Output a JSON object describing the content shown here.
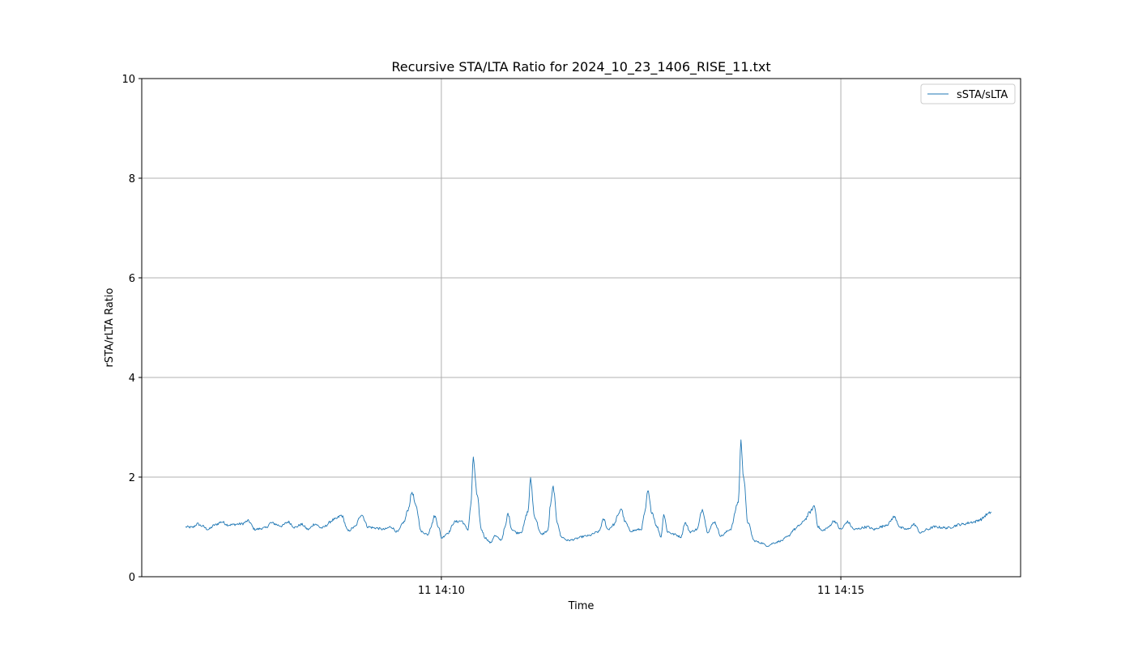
{
  "chart_data": {
    "type": "line",
    "title": "Recursive STA/LTA Ratio for 2024_10_23_1406_RISE_11.txt",
    "xlabel": "Time",
    "ylabel": "rSTA/rLTA Ratio",
    "xlim": [
      "14:06:15",
      "14:17:15"
    ],
    "ylim": [
      0,
      10
    ],
    "yticks": [
      0,
      2,
      4,
      6,
      8,
      10
    ],
    "xticks": [
      {
        "time": "14:10:00",
        "label": "11 14:10"
      },
      {
        "time": "14:15:00",
        "label": "11 14:15"
      }
    ],
    "grid": true,
    "legend": {
      "position": "top-right"
    },
    "series": [
      {
        "name": "sSTA/sLTA",
        "color": "#1f77b4",
        "keypoints": [
          [
            "14:06:48",
            1.0
          ],
          [
            "14:06:53",
            0.99
          ],
          [
            "14:06:57",
            1.06
          ],
          [
            "14:07:00",
            1.02
          ],
          [
            "14:07:05",
            0.95
          ],
          [
            "14:07:10",
            1.04
          ],
          [
            "14:07:15",
            1.1
          ],
          [
            "14:07:20",
            1.04
          ],
          [
            "14:07:30",
            1.06
          ],
          [
            "14:07:35",
            1.12
          ],
          [
            "14:07:40",
            0.95
          ],
          [
            "14:07:48",
            0.98
          ],
          [
            "14:07:52",
            1.08
          ],
          [
            "14:08:00",
            1.02
          ],
          [
            "14:08:05",
            1.1
          ],
          [
            "14:08:10",
            0.99
          ],
          [
            "14:08:15",
            1.05
          ],
          [
            "14:08:20",
            0.95
          ],
          [
            "14:08:25",
            1.06
          ],
          [
            "14:08:30",
            0.98
          ],
          [
            "14:08:40",
            1.15
          ],
          [
            "14:08:45",
            1.23
          ],
          [
            "14:08:50",
            0.92
          ],
          [
            "14:08:55",
            1.0
          ],
          [
            "14:09:00",
            1.25
          ],
          [
            "14:09:05",
            1.0
          ],
          [
            "14:09:10",
            0.98
          ],
          [
            "14:09:17",
            0.95
          ],
          [
            "14:09:22",
            1.0
          ],
          [
            "14:09:27",
            0.9
          ],
          [
            "14:09:32",
            1.1
          ],
          [
            "14:09:35",
            1.35
          ],
          [
            "14:09:38",
            1.7
          ],
          [
            "14:09:41",
            1.4
          ],
          [
            "14:09:45",
            0.9
          ],
          [
            "14:09:50",
            0.85
          ],
          [
            "14:09:52",
            1.0
          ],
          [
            "14:09:55",
            1.22
          ],
          [
            "14:09:58",
            1.0
          ],
          [
            "14:10:00",
            0.78
          ],
          [
            "14:10:05",
            0.88
          ],
          [
            "14:10:10",
            1.1
          ],
          [
            "14:10:15",
            1.12
          ],
          [
            "14:10:20",
            0.95
          ],
          [
            "14:10:22",
            1.4
          ],
          [
            "14:10:24",
            2.35
          ],
          [
            "14:10:27",
            1.6
          ],
          [
            "14:10:30",
            0.95
          ],
          [
            "14:10:33",
            0.78
          ],
          [
            "14:10:37",
            0.68
          ],
          [
            "14:10:40",
            0.82
          ],
          [
            "14:10:45",
            0.74
          ],
          [
            "14:10:48",
            1.0
          ],
          [
            "14:10:50",
            1.27
          ],
          [
            "14:10:53",
            0.95
          ],
          [
            "14:10:57",
            0.88
          ],
          [
            "14:11:00",
            0.9
          ],
          [
            "14:11:05",
            1.3
          ],
          [
            "14:11:07",
            1.95
          ],
          [
            "14:11:10",
            1.2
          ],
          [
            "14:11:15",
            0.85
          ],
          [
            "14:11:20",
            0.92
          ],
          [
            "14:11:22",
            1.45
          ],
          [
            "14:11:24",
            1.8
          ],
          [
            "14:11:27",
            1.1
          ],
          [
            "14:11:30",
            0.8
          ],
          [
            "14:11:35",
            0.73
          ],
          [
            "14:11:50",
            0.82
          ],
          [
            "14:11:58",
            0.9
          ],
          [
            "14:12:02",
            1.15
          ],
          [
            "14:12:05",
            0.95
          ],
          [
            "14:12:10",
            1.05
          ],
          [
            "14:12:12",
            1.2
          ],
          [
            "14:12:15",
            1.37
          ],
          [
            "14:12:18",
            1.1
          ],
          [
            "14:12:22",
            0.92
          ],
          [
            "14:12:30",
            0.95
          ],
          [
            "14:12:33",
            1.3
          ],
          [
            "14:12:35",
            1.72
          ],
          [
            "14:12:38",
            1.3
          ],
          [
            "14:12:42",
            1.0
          ],
          [
            "14:12:45",
            0.8
          ],
          [
            "14:12:47",
            1.25
          ],
          [
            "14:12:50",
            0.9
          ],
          [
            "14:12:55",
            0.85
          ],
          [
            "14:13:00",
            0.8
          ],
          [
            "14:13:03",
            1.08
          ],
          [
            "14:13:07",
            0.9
          ],
          [
            "14:13:12",
            0.95
          ],
          [
            "14:13:16",
            1.35
          ],
          [
            "14:13:20",
            0.9
          ],
          [
            "14:13:25",
            1.1
          ],
          [
            "14:13:30",
            0.82
          ],
          [
            "14:13:37",
            0.95
          ],
          [
            "14:13:43",
            1.5
          ],
          [
            "14:13:45",
            2.7
          ],
          [
            "14:13:47",
            2.0
          ],
          [
            "14:13:50",
            1.1
          ],
          [
            "14:13:55",
            0.72
          ],
          [
            "14:14:00",
            0.68
          ],
          [
            "14:14:05",
            0.62
          ],
          [
            "14:14:10",
            0.68
          ],
          [
            "14:14:15",
            0.72
          ],
          [
            "14:14:20",
            0.8
          ],
          [
            "14:14:25",
            0.95
          ],
          [
            "14:14:30",
            1.05
          ],
          [
            "14:14:33",
            1.15
          ],
          [
            "14:14:37",
            1.3
          ],
          [
            "14:14:40",
            1.42
          ],
          [
            "14:14:43",
            1.0
          ],
          [
            "14:14:46",
            0.92
          ],
          [
            "14:14:50",
            0.98
          ],
          [
            "14:14:55",
            1.12
          ],
          [
            "14:15:00",
            0.95
          ],
          [
            "14:15:05",
            1.1
          ],
          [
            "14:15:10",
            0.95
          ],
          [
            "14:15:20",
            1.0
          ],
          [
            "14:15:25",
            0.95
          ],
          [
            "14:15:30",
            1.0
          ],
          [
            "14:15:35",
            1.05
          ],
          [
            "14:15:40",
            1.2
          ],
          [
            "14:15:45",
            0.98
          ],
          [
            "14:15:50",
            0.95
          ],
          [
            "14:15:55",
            1.05
          ],
          [
            "14:16:00",
            0.88
          ],
          [
            "14:16:05",
            0.95
          ],
          [
            "14:16:10",
            1.0
          ],
          [
            "14:16:20",
            0.98
          ],
          [
            "14:16:30",
            1.05
          ],
          [
            "14:16:40",
            1.1
          ],
          [
            "14:16:45",
            1.15
          ],
          [
            "14:16:50",
            1.25
          ],
          [
            "14:16:53",
            1.3
          ]
        ]
      }
    ]
  }
}
